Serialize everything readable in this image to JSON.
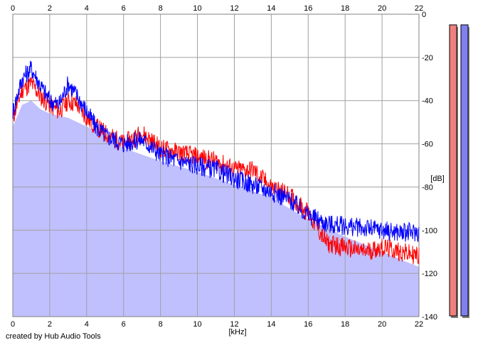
{
  "app": {
    "credit": "created by Hub Audio Tools"
  },
  "colors": {
    "background": "#ffffff",
    "grid": "#a0a0a0",
    "fill": "#c0c0ff",
    "red_series": "#ff0000",
    "blue_series": "#0000ff",
    "meter_red": "#f08080",
    "meter_blue": "#8080f0"
  },
  "chart_data": {
    "type": "line",
    "xlabel": "[kHz]",
    "ylabel": "[dB]",
    "xlim": [
      0,
      22
    ],
    "ylim": [
      -140,
      0
    ],
    "x_ticks": [
      0,
      2,
      4,
      6,
      8,
      10,
      12,
      14,
      16,
      18,
      20,
      22
    ],
    "y_ticks": [
      0,
      -20,
      -40,
      -60,
      -80,
      -100,
      -120,
      -140
    ],
    "grid": true,
    "x_axis_labels": "top and bottom",
    "y_axis_labels": "right",
    "series": [
      {
        "color": "red",
        "x": [
          0,
          0.5,
          1,
          1.5,
          2,
          2.5,
          3,
          3.5,
          4,
          4.5,
          5,
          6,
          7,
          8,
          9,
          10,
          11,
          12,
          13,
          14,
          15,
          16,
          17,
          18,
          19,
          20,
          21,
          22
        ],
        "y": [
          -48,
          -35,
          -32,
          -38,
          -42,
          -45,
          -40,
          -42,
          -48,
          -52,
          -55,
          -60,
          -55,
          -62,
          -64,
          -66,
          -68,
          -72,
          -72,
          -80,
          -84,
          -92,
          -106,
          -108,
          -110,
          -108,
          -110,
          -112
        ]
      },
      {
        "color": "blue",
        "x": [
          0,
          0.5,
          1,
          1.5,
          2,
          2.5,
          3,
          3.5,
          4,
          4.5,
          5,
          6,
          7,
          8,
          9,
          10,
          11,
          12,
          13,
          14,
          15,
          16,
          17,
          18,
          19,
          20,
          21,
          22
        ],
        "y": [
          -45,
          -30,
          -25,
          -33,
          -40,
          -42,
          -32,
          -38,
          -45,
          -52,
          -56,
          -60,
          -58,
          -65,
          -68,
          -70,
          -72,
          -76,
          -79,
          -82,
          -86,
          -93,
          -97,
          -98,
          -99,
          -100,
          -101,
          -101
        ]
      }
    ],
    "filled_envelope": {
      "color": "lavender",
      "x": [
        0,
        0.5,
        1,
        1.5,
        2,
        3,
        4,
        5,
        6,
        7,
        8,
        10,
        12,
        14,
        16,
        18,
        20,
        22
      ],
      "y": [
        -52,
        -42,
        -40,
        -44,
        -46,
        -48,
        -52,
        -56,
        -62,
        -65,
        -68,
        -73,
        -79,
        -85,
        -95,
        -103,
        -110,
        -117
      ]
    },
    "level_meters": [
      {
        "channel": "red",
        "level_db": -140
      },
      {
        "channel": "blue",
        "level_db": -140
      }
    ]
  }
}
